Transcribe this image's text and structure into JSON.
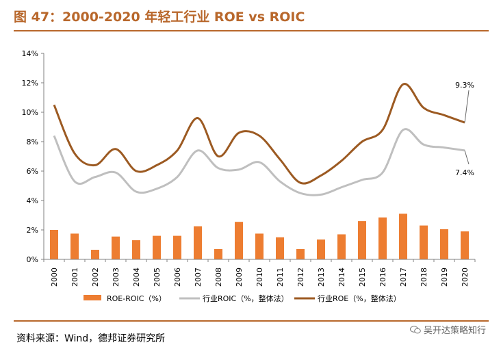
{
  "header": {
    "title": "图 47：2000-2020 年轻工行业 ROE vs ROIC"
  },
  "footer": {
    "source": "资料来源：Wind，德邦证券研究所",
    "watermark": "吴开达策略知行"
  },
  "chart_data": {
    "type": "bar+line",
    "categories": [
      "2000",
      "2001",
      "2002",
      "2003",
      "2004",
      "2005",
      "2006",
      "2007",
      "2008",
      "2009",
      "2010",
      "2011",
      "2012",
      "2013",
      "2014",
      "2015",
      "2016",
      "2017",
      "2018",
      "2019",
      "2020"
    ],
    "y_ticks": [
      "0%",
      "2%",
      "4%",
      "6%",
      "8%",
      "10%",
      "12%",
      "14%"
    ],
    "ylim": [
      0,
      14
    ],
    "series": [
      {
        "name": "ROE-ROIC（%）",
        "kind": "bar",
        "color": "#ed7d31",
        "values": [
          2.0,
          1.75,
          0.65,
          1.55,
          1.3,
          1.6,
          1.6,
          2.25,
          0.7,
          2.55,
          1.75,
          1.5,
          0.7,
          1.35,
          1.7,
          2.6,
          2.85,
          3.1,
          2.3,
          2.05,
          1.9
        ]
      },
      {
        "name": "行业ROIC（%，整体法）",
        "kind": "line",
        "color": "#bfbfbf",
        "values": [
          8.4,
          5.3,
          5.6,
          5.9,
          4.6,
          4.8,
          5.6,
          7.4,
          6.2,
          6.1,
          6.6,
          5.3,
          4.5,
          4.4,
          4.9,
          5.4,
          5.9,
          8.8,
          7.8,
          7.6,
          7.4
        ]
      },
      {
        "name": "行业ROE（%，整体法）",
        "kind": "line",
        "color": "#9c5a22",
        "values": [
          10.5,
          7.2,
          6.4,
          7.5,
          6.0,
          6.4,
          7.4,
          9.6,
          7.0,
          8.6,
          8.4,
          6.8,
          5.2,
          5.7,
          6.7,
          8.0,
          8.8,
          11.9,
          10.3,
          9.8,
          9.3
        ]
      }
    ],
    "annotations": {
      "roe_last": "9.3%",
      "roic_last": "7.4%"
    }
  }
}
